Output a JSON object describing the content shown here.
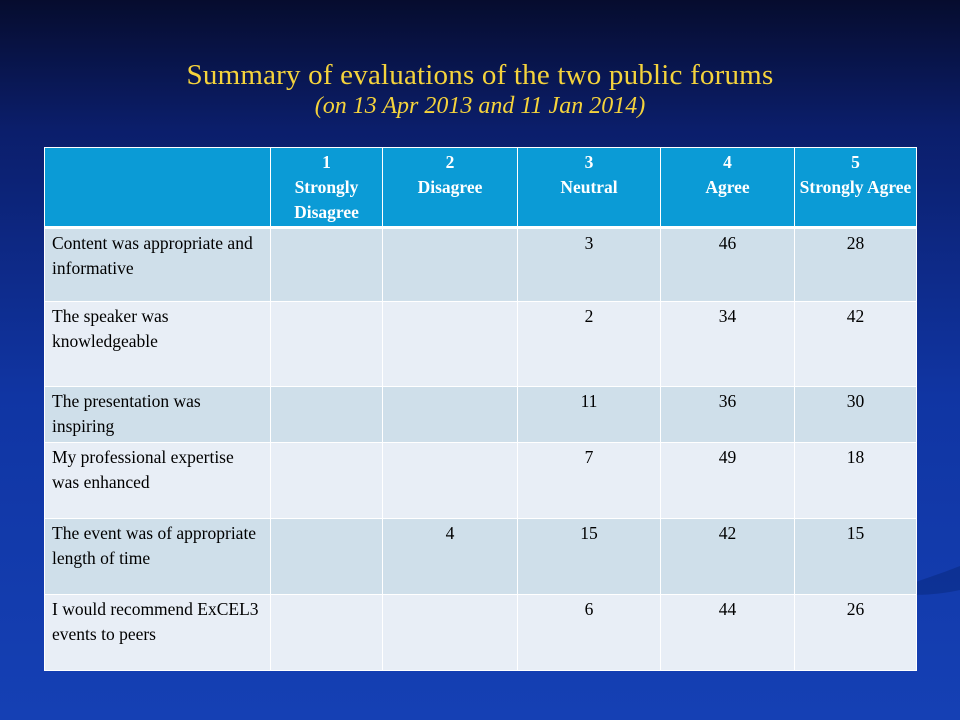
{
  "title": {
    "main": "Summary of evaluations of the two public forums",
    "sub": "(on 13 Apr 2013 and 11 Jan 2014)"
  },
  "table": {
    "headers": [
      {
        "num": "",
        "label": ""
      },
      {
        "num": "1",
        "label": "Strongly Disagree"
      },
      {
        "num": "2",
        "label": "Disagree"
      },
      {
        "num": "3",
        "label": "Neutral"
      },
      {
        "num": "4",
        "label": "Agree"
      },
      {
        "num": "5",
        "label": "Strongly Agree"
      }
    ],
    "rows": [
      {
        "label": "Content was appropriate and informative",
        "values": [
          "",
          "",
          "3",
          "46",
          "28"
        ]
      },
      {
        "label": "The speaker was knowledgeable",
        "values": [
          "",
          "",
          "2",
          "34",
          "42"
        ]
      },
      {
        "label": "The presentation was inspiring",
        "values": [
          "",
          "",
          "11",
          "36",
          "30"
        ]
      },
      {
        "label": "My professional expertise was enhanced",
        "values": [
          "",
          "",
          "7",
          "49",
          "18"
        ]
      },
      {
        "label": "The event was of appropriate length of time",
        "values": [
          "",
          "4",
          "15",
          "42",
          "15"
        ]
      },
      {
        "label": "I would recommend ExCEL3 events to peers",
        "values": [
          "",
          "",
          "6",
          "44",
          "26"
        ]
      }
    ]
  }
}
